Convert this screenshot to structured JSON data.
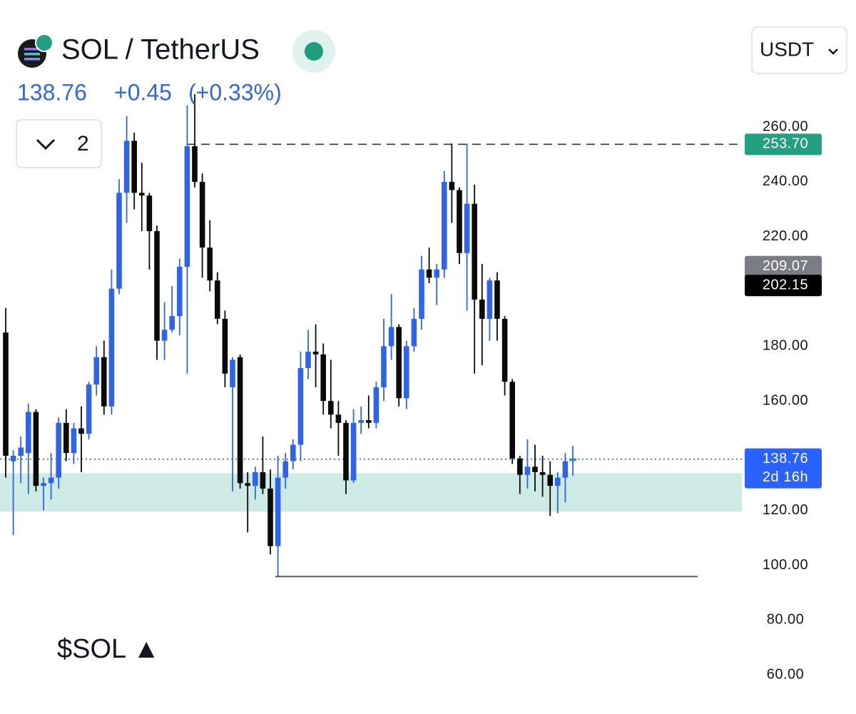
{
  "header": {
    "title": "SOL / TetherUS",
    "price": "138.76",
    "change": "+0.45",
    "change_pct": "(+0.33%)",
    "indicator_count": "2",
    "currency": "USDT"
  },
  "caption": "$SOL ▲",
  "chart_data": {
    "type": "candlestick",
    "up_color": "#2f64e8",
    "down_color": "#0a0a0a",
    "open": [
      185,
      138,
      140,
      141,
      156,
      129,
      130,
      132,
      152,
      141,
      150,
      148,
      166,
      176,
      158,
      201,
      236,
      255,
      236,
      235,
      222,
      182,
      186,
      191,
      209,
      253,
      240,
      216,
      204,
      190,
      165,
      176,
      130,
      129,
      134,
      128,
      107,
      132,
      138,
      144,
      172,
      178,
      177,
      160,
      155,
      152,
      131,
      152,
      153,
      152,
      165,
      180,
      187,
      161,
      180,
      190,
      208,
      205,
      208,
      240,
      237,
      214,
      232,
      197,
      190,
      204,
      190,
      167,
      139,
      133,
      136,
      134,
      133,
      129,
      132,
      138.31
    ],
    "high": [
      194,
      142,
      147,
      159,
      157,
      132,
      141,
      154,
      157,
      152,
      158,
      167,
      180,
      182,
      208,
      241,
      264,
      258,
      247,
      236,
      224,
      196,
      202,
      212,
      268,
      272,
      243,
      226,
      207,
      193,
      176,
      177,
      134,
      136,
      147,
      135,
      140,
      141,
      146,
      178,
      186,
      188,
      181,
      175,
      160,
      153,
      157,
      158,
      162,
      167,
      190,
      199,
      188,
      182,
      194,
      213,
      216,
      210,
      244,
      254,
      238,
      254,
      239,
      210,
      205,
      207,
      191,
      168,
      140,
      146,
      144,
      140,
      138,
      134,
      141,
      143.6
    ],
    "low": [
      132,
      111,
      130,
      126,
      127,
      120,
      124,
      128,
      138,
      137,
      134,
      146,
      162,
      155,
      155,
      199,
      225,
      230,
      222,
      208,
      175,
      175,
      185,
      184,
      170,
      238,
      205,
      200,
      188,
      165,
      127,
      128,
      112,
      124,
      126,
      104,
      96,
      128,
      135,
      138,
      168,
      165,
      155,
      150,
      140,
      126,
      130,
      148,
      150,
      150,
      160,
      175,
      158,
      157,
      178,
      186,
      203,
      195,
      205,
      225,
      210,
      193,
      170,
      173,
      182,
      182,
      162,
      137,
      126,
      128,
      127,
      125,
      118,
      119,
      123,
      132.7
    ],
    "close": [
      140,
      140,
      143,
      156,
      129,
      130,
      132,
      152,
      141,
      150,
      148,
      166,
      176,
      158,
      201,
      236,
      255,
      236,
      235,
      222,
      182,
      186,
      191,
      209,
      253,
      240,
      216,
      204,
      190,
      170,
      175,
      130,
      129,
      134,
      128,
      107,
      132,
      138,
      144,
      172,
      178,
      177,
      160,
      155,
      152,
      131,
      152,
      153,
      152,
      165,
      180,
      187,
      161,
      180,
      190,
      208,
      205,
      208,
      240,
      237,
      214,
      232,
      197,
      190,
      204,
      190,
      167,
      139,
      133,
      136,
      134,
      133,
      129,
      132,
      138,
      138.76
    ],
    "ylim": [
      45.7,
      306.4
    ],
    "yticks": [
      {
        "value": 260,
        "label": "260.00"
      },
      {
        "value": 240,
        "label": "240.00"
      },
      {
        "value": 220,
        "label": "220.00"
      },
      {
        "value": 180,
        "label": "180.00"
      },
      {
        "value": 160,
        "label": "160.00"
      },
      {
        "value": 120,
        "label": "120.00"
      },
      {
        "value": 100,
        "label": "100.00"
      },
      {
        "value": 80,
        "label": "80.00"
      },
      {
        "value": 60,
        "label": "60.00"
      }
    ],
    "price_labels": [
      {
        "value": 253.7,
        "label": "253.70",
        "color": "#22a07f"
      },
      {
        "value": 209.07,
        "label": "209.07",
        "color": "#7b7d85"
      },
      {
        "value": 202.15,
        "label": "202.15",
        "color": "#000000"
      },
      {
        "value": 138.76,
        "label": "138.76",
        "color": "#2962ff",
        "countdown": "2d 16h"
      }
    ],
    "horizontal_lines": [
      {
        "value": 253.7,
        "style": "dashed",
        "color": "#333333"
      },
      {
        "value": 138.76,
        "style": "dotted",
        "color": "#2962ff"
      },
      {
        "value": 95.9,
        "style": "solid",
        "color": "#555a66"
      }
    ],
    "zone": {
      "low": 119.6,
      "high": 133.6,
      "color": "#cdebe4"
    }
  }
}
